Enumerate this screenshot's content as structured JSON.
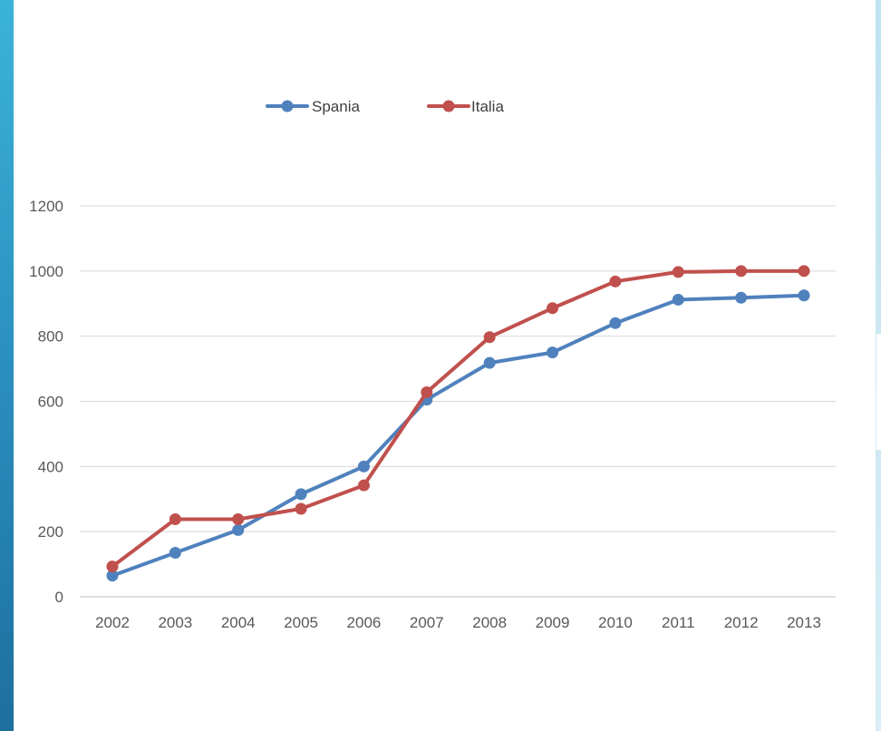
{
  "chart_data": {
    "type": "line",
    "x": [
      "2002",
      "2003",
      "2004",
      "2005",
      "2006",
      "2007",
      "2008",
      "2009",
      "2010",
      "2011",
      "2012",
      "2013"
    ],
    "series": [
      {
        "name": "Spania",
        "color": "#4f81bd",
        "values": [
          65,
          135,
          205,
          315,
          400,
          605,
          718,
          750,
          840,
          912,
          918,
          925
        ]
      },
      {
        "name": "Italia",
        "color": "#c0504d",
        "values": [
          93,
          238,
          238,
          270,
          342,
          628,
          797,
          886,
          968,
          997,
          1000,
          1000
        ]
      }
    ],
    "ylim": [
      0,
      1200
    ],
    "yticks": [
      "0",
      "200",
      "400",
      "600",
      "800",
      "1000",
      "1200"
    ],
    "grid": true,
    "legend": "top",
    "title": "",
    "xlabel": "",
    "ylabel": ""
  }
}
